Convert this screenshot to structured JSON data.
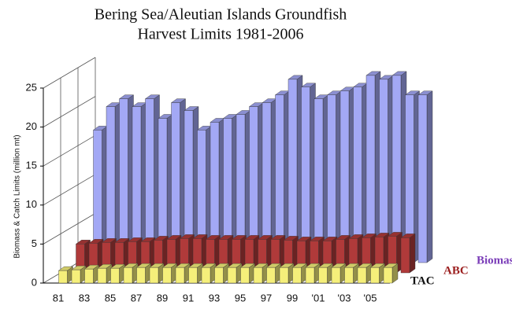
{
  "chart_data": {
    "type": "bar3d",
    "title": "Bering Sea/Aleutian Islands Groundfish",
    "subtitle": "Harvest Limits 1981-2006",
    "y_label": "Biomass & Catch Limits (million mt)",
    "categories": [
      "81",
      null,
      "83",
      null,
      "85",
      null,
      "87",
      null,
      "89",
      null,
      "91",
      null,
      "93",
      null,
      "95",
      null,
      "97",
      null,
      "99",
      null,
      "'01",
      null,
      "'03",
      null,
      "'05",
      null
    ],
    "series": [
      {
        "name": "Biomass",
        "color": "#a3a8f5",
        "label_color": "#7a3cb8",
        "values": [
          17,
          20,
          21,
          20,
          21,
          18.5,
          20.5,
          19.5,
          17,
          18,
          18.5,
          19,
          20,
          20.5,
          21.5,
          23.5,
          22.5,
          21,
          21.5,
          22,
          22.5,
          24,
          23.5,
          24,
          21.5,
          21.5
        ]
      },
      {
        "name": "ABC",
        "color": "#b03a3a",
        "label_color": "#9c2020",
        "values": [
          3.7,
          3.8,
          3.9,
          3.9,
          4.0,
          4.0,
          4.2,
          4.3,
          4.4,
          4.4,
          4.3,
          4.3,
          4.3,
          4.3,
          4.3,
          4.3,
          4.2,
          4.1,
          4.1,
          4.1,
          4.3,
          4.4,
          4.5,
          4.6,
          4.7,
          4.5
        ]
      },
      {
        "name": "TAC",
        "color": "#f5ef7a",
        "label_color": "#111111",
        "values": [
          1.6,
          1.7,
          1.8,
          1.9,
          1.9,
          2.0,
          2.0,
          2.0,
          2.0,
          2.0,
          2.0,
          2.0,
          2.0,
          2.0,
          2.0,
          2.0,
          2.0,
          2.0,
          2.0,
          2.0,
          2.0,
          2.0,
          2.0,
          2.0,
          2.0,
          2.0
        ]
      }
    ],
    "ylim": [
      0,
      25
    ],
    "yticks": [
      0,
      5,
      10,
      15,
      20,
      25
    ],
    "grid": true
  }
}
